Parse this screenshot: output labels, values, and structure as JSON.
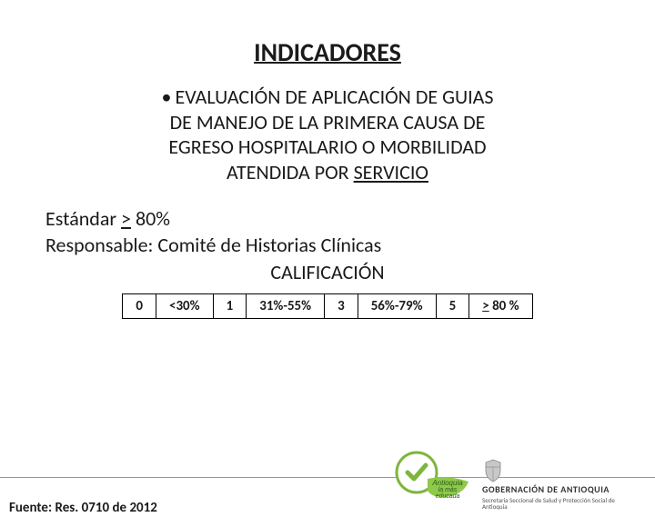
{
  "title": "INDICADORES",
  "bullet": {
    "marker": "•",
    "line1": "EVALUACIÓN DE APLICACIÓN DE GUIAS",
    "line2": "DE MANEJO DE LA PRIMERA CAUSA DE",
    "line3": "EGRESO HOSPITALARIO O MORBILIDAD",
    "line4_pre": "ATENDIDA POR ",
    "line4_underlined": "SERVICIO"
  },
  "meta": {
    "estandar_label": "Estándar ",
    "estandar_gte": ">",
    "estandar_val": " 80%",
    "responsable": "Responsable: Comité de Historias Clínicas",
    "calificacion": "CALIFICACIÓN"
  },
  "score_table": {
    "cells": [
      {
        "text": "0"
      },
      {
        "text": "<30%"
      },
      {
        "text": "1"
      },
      {
        "text": "31%-55%"
      },
      {
        "text": "3"
      },
      {
        "text": "56%-79%"
      },
      {
        "text": "5"
      },
      {
        "text": "> 80 %",
        "underline_first": ">"
      }
    ]
  },
  "fuente": "Fuente: Res. 0710 de 2012",
  "logos": {
    "antioquia_text1": "Antioquia",
    "antioquia_text2": "la más",
    "antioquia_text3": "educada",
    "gob_title": "GOBERNACIÓN DE ANTIOQUIA",
    "gob_sub": "Secretaría Seccional de Salud y Protección Social de Antioquia"
  },
  "colors": {
    "check_green": "#7fb53d",
    "ribbon_green": "#8fc94a",
    "shield_fill": "#c8c8c8",
    "shield_stroke": "#888"
  }
}
